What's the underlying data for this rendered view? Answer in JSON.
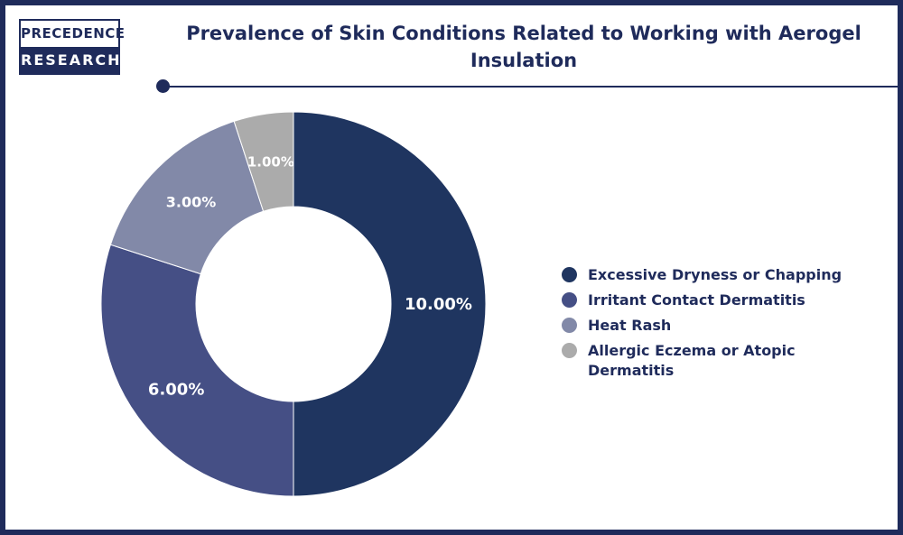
{
  "logo": {
    "line1": "PRECEDENCE",
    "line2": "RESEARCH"
  },
  "header": {
    "title": "Prevalence of Skin Conditions Related to Working with Aerogel Insulation"
  },
  "chart_data": {
    "type": "pie",
    "style": "donut",
    "title": "Prevalence of Skin Conditions Related to Working with Aerogel Insulation",
    "legend_position": "right",
    "series": [
      {
        "name": "Excessive Dryness or Chapping",
        "value": 10.0,
        "label": "10.00%",
        "color": "#1f3560"
      },
      {
        "name": "Irritant Contact Dermatitis",
        "value": 6.0,
        "label": "6.00%",
        "color": "#454f85"
      },
      {
        "name": "Heat Rash",
        "value": 3.0,
        "label": "3.00%",
        "color": "#8289a8"
      },
      {
        "name": "Allergic Eczema or Atopic Dermatitis",
        "value": 1.0,
        "label": "1.00%",
        "color": "#ababab"
      }
    ]
  }
}
